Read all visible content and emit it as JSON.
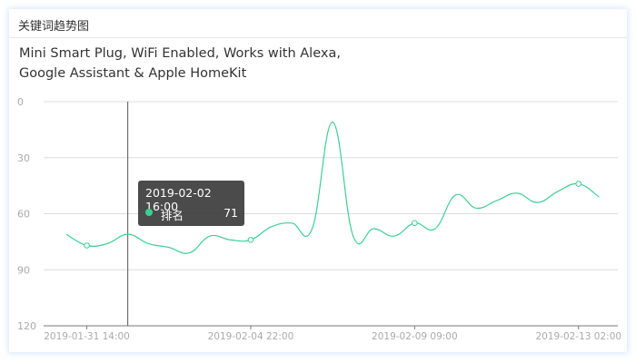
{
  "card": {
    "title": "关键词趋势图"
  },
  "chart_data": {
    "type": "line",
    "title": "Mini Smart Plug, WiFi Enabled, Works with Alexa, Google Assistant & Apple HomeKit",
    "title_lines": [
      "Mini Smart Plug, WiFi Enabled, Works with Alexa,",
      "Google Assistant & Apple HomeKit"
    ],
    "y_axis": {
      "inverse": true,
      "min": 0,
      "max": 120,
      "ticks": [
        0,
        30,
        60,
        90,
        120
      ],
      "grid": true
    },
    "x_tick_labels": [
      {
        "index": 1,
        "label": "2019-01-31 14:00"
      },
      {
        "index": 9,
        "label": "2019-02-04 22:00"
      },
      {
        "index": 17,
        "label": "2019-02-09 09:00"
      },
      {
        "index": 25,
        "label": "2019-02-13 02:00"
      }
    ],
    "series": [
      {
        "name": "排名",
        "color": "#3ad08f",
        "smooth": true,
        "values": [
          71,
          77,
          76,
          71,
          76,
          78,
          81,
          72,
          74,
          74,
          67,
          65,
          68,
          11,
          72,
          68,
          72,
          65,
          68,
          50,
          57,
          53,
          49,
          54,
          48,
          44,
          51
        ]
      }
    ],
    "tooltip": {
      "index": 3,
      "time": "2019-02-02 16:00",
      "series_name": "排名",
      "value": "71"
    }
  }
}
